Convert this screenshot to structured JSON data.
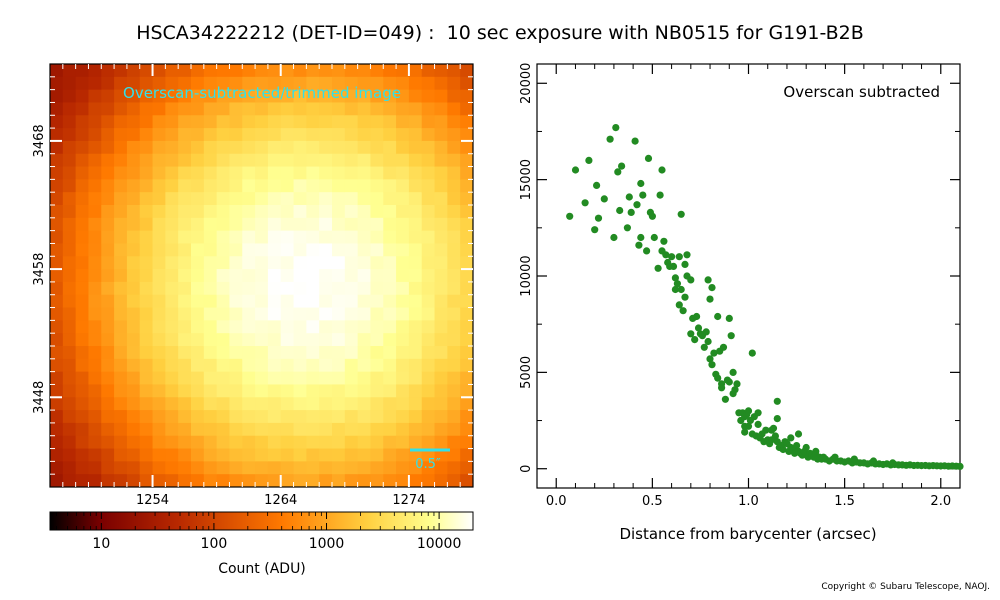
{
  "title": "HSCA34222212 (DET-ID=049) :  10 sec exposure with NB0515 for G191-B2B",
  "copyright": "Copyright © Subaru Telescope, NAOJ.",
  "chart_data": [
    {
      "type": "heatmap",
      "annotation": "Overscan-subtracted/trimmed image",
      "annotation_color": "#33e0e8",
      "scale_bar_label": "0.5″",
      "x_ticks": [
        "1254",
        "1264",
        "1274"
      ],
      "y_ticks": [
        "3468",
        "3458",
        "3448"
      ],
      "xlim": [
        1246,
        1279
      ],
      "ylim": [
        3441,
        3474
      ],
      "peak_center": [
        1266,
        3457
      ],
      "peak_value": 20000,
      "background_value": 20,
      "colormap": [
        "#000000",
        "#7a0000",
        "#b82800",
        "#ff7a00",
        "#ffd040",
        "#ffff90",
        "#ffffff"
      ],
      "colorbar": {
        "label": "Count (ADU)",
        "scale": "log",
        "range": [
          3.5,
          20000
        ],
        "ticks": [
          "10",
          "100",
          "1000",
          "10000"
        ]
      }
    },
    {
      "type": "scatter",
      "annotation": "Overscan subtracted",
      "xlabel": "Distance from barycenter (arcsec)",
      "ylabel": "",
      "xlim": [
        -0.1,
        2.1
      ],
      "ylim": [
        -1000,
        21000
      ],
      "x_ticks": [
        "0.0",
        "0.5",
        "1.0",
        "1.5",
        "2.0"
      ],
      "y_ticks": [
        "0",
        "5000",
        "10000",
        "15000",
        "20000"
      ],
      "point_color": "#228b22",
      "points": [
        [
          0.07,
          13100
        ],
        [
          0.1,
          15500
        ],
        [
          0.15,
          13800
        ],
        [
          0.17,
          16000
        ],
        [
          0.2,
          12400
        ],
        [
          0.21,
          14700
        ],
        [
          0.22,
          13000
        ],
        [
          0.25,
          14000
        ],
        [
          0.28,
          17100
        ],
        [
          0.3,
          12000
        ],
        [
          0.31,
          17700
        ],
        [
          0.32,
          15400
        ],
        [
          0.33,
          13400
        ],
        [
          0.34,
          15700
        ],
        [
          0.37,
          12500
        ],
        [
          0.38,
          14100
        ],
        [
          0.39,
          13300
        ],
        [
          0.41,
          17000
        ],
        [
          0.42,
          13700
        ],
        [
          0.43,
          11600
        ],
        [
          0.44,
          14800
        ],
        [
          0.44,
          12000
        ],
        [
          0.45,
          14200
        ],
        [
          0.47,
          11300
        ],
        [
          0.48,
          16100
        ],
        [
          0.49,
          13300
        ],
        [
          0.5,
          13100
        ],
        [
          0.51,
          12000
        ],
        [
          0.53,
          10400
        ],
        [
          0.54,
          14200
        ],
        [
          0.55,
          15500
        ],
        [
          0.55,
          11300
        ],
        [
          0.56,
          11800
        ],
        [
          0.57,
          11100
        ],
        [
          0.58,
          10700
        ],
        [
          0.59,
          10500
        ],
        [
          0.6,
          11000
        ],
        [
          0.61,
          10500
        ],
        [
          0.62,
          9900
        ],
        [
          0.62,
          9300
        ],
        [
          0.63,
          9600
        ],
        [
          0.64,
          8500
        ],
        [
          0.64,
          11000
        ],
        [
          0.65,
          13200
        ],
        [
          0.65,
          9300
        ],
        [
          0.66,
          8200
        ],
        [
          0.67,
          8900
        ],
        [
          0.67,
          10600
        ],
        [
          0.68,
          11100
        ],
        [
          0.68,
          10000
        ],
        [
          0.7,
          9800
        ],
        [
          0.7,
          7000
        ],
        [
          0.71,
          7800
        ],
        [
          0.72,
          6700
        ],
        [
          0.73,
          7900
        ],
        [
          0.74,
          7300
        ],
        [
          0.75,
          7000
        ],
        [
          0.76,
          6900
        ],
        [
          0.77,
          6300
        ],
        [
          0.78,
          7100
        ],
        [
          0.79,
          9800
        ],
        [
          0.79,
          6600
        ],
        [
          0.8,
          8800
        ],
        [
          0.8,
          5700
        ],
        [
          0.81,
          5400
        ],
        [
          0.81,
          9400
        ],
        [
          0.82,
          6000
        ],
        [
          0.83,
          4900
        ],
        [
          0.84,
          7900
        ],
        [
          0.84,
          4700
        ],
        [
          0.85,
          6100
        ],
        [
          0.86,
          4400
        ],
        [
          0.86,
          4200
        ],
        [
          0.87,
          6300
        ],
        [
          0.88,
          3600
        ],
        [
          0.89,
          4600
        ],
        [
          0.9,
          4500
        ],
        [
          0.9,
          7800
        ],
        [
          0.91,
          6900
        ],
        [
          0.92,
          3900
        ],
        [
          0.92,
          5000
        ],
        [
          0.93,
          4100
        ],
        [
          0.94,
          4400
        ],
        [
          0.95,
          2900
        ],
        [
          0.96,
          2500
        ],
        [
          0.97,
          2900
        ],
        [
          0.98,
          2200
        ],
        [
          0.98,
          2700
        ],
        [
          0.99,
          2800
        ],
        [
          1.0,
          3000
        ],
        [
          1.0,
          2200
        ],
        [
          1.01,
          2500
        ],
        [
          1.02,
          1800
        ],
        [
          1.02,
          6000
        ],
        [
          1.03,
          2700
        ],
        [
          1.04,
          1700
        ],
        [
          1.05,
          2300
        ],
        [
          1.06,
          1600
        ],
        [
          1.07,
          1800
        ],
        [
          1.08,
          1400
        ],
        [
          1.09,
          2000
        ],
        [
          1.1,
          1500
        ],
        [
          1.11,
          1300
        ],
        [
          1.12,
          1500
        ],
        [
          1.13,
          2100
        ],
        [
          1.14,
          1700
        ],
        [
          1.15,
          1400
        ],
        [
          1.15,
          3500
        ],
        [
          1.16,
          1100
        ],
        [
          1.17,
          1200
        ],
        [
          1.18,
          1000
        ],
        [
          1.19,
          1400
        ],
        [
          1.2,
          1300
        ],
        [
          1.21,
          900
        ],
        [
          1.22,
          1100
        ],
        [
          1.23,
          1000
        ],
        [
          1.24,
          800
        ],
        [
          1.25,
          1200
        ],
        [
          1.26,
          900
        ],
        [
          1.27,
          800
        ],
        [
          1.28,
          700
        ],
        [
          1.29,
          900
        ],
        [
          1.3,
          800
        ],
        [
          1.31,
          600
        ],
        [
          1.32,
          800
        ],
        [
          1.33,
          700
        ],
        [
          1.34,
          600
        ],
        [
          1.35,
          700
        ],
        [
          1.36,
          500
        ],
        [
          1.37,
          600
        ],
        [
          1.38,
          500
        ],
        [
          1.39,
          600
        ],
        [
          1.4,
          500
        ],
        [
          1.42,
          400
        ],
        [
          1.44,
          500
        ],
        [
          1.46,
          400
        ],
        [
          1.48,
          400
        ],
        [
          1.5,
          350
        ],
        [
          1.52,
          400
        ],
        [
          1.54,
          300
        ],
        [
          1.56,
          350
        ],
        [
          1.58,
          300
        ],
        [
          1.6,
          300
        ],
        [
          1.62,
          250
        ],
        [
          1.64,
          300
        ],
        [
          1.66,
          250
        ],
        [
          1.68,
          250
        ],
        [
          1.7,
          220
        ],
        [
          1.72,
          250
        ],
        [
          1.74,
          200
        ],
        [
          1.76,
          220
        ],
        [
          1.78,
          200
        ],
        [
          1.8,
          200
        ],
        [
          1.82,
          180
        ],
        [
          1.84,
          200
        ],
        [
          1.86,
          170
        ],
        [
          1.88,
          180
        ],
        [
          1.9,
          160
        ],
        [
          1.92,
          170
        ],
        [
          1.94,
          150
        ],
        [
          1.96,
          160
        ],
        [
          1.98,
          150
        ],
        [
          2.0,
          140
        ],
        [
          2.02,
          150
        ],
        [
          2.04,
          130
        ],
        [
          2.06,
          140
        ],
        [
          2.08,
          130
        ],
        [
          2.1,
          120
        ],
        [
          1.22,
          1600
        ],
        [
          1.26,
          1800
        ],
        [
          1.3,
          1100
        ],
        [
          1.35,
          900
        ],
        [
          1.15,
          2600
        ],
        [
          1.12,
          2000
        ],
        [
          1.05,
          2900
        ],
        [
          0.98,
          1900
        ],
        [
          1.45,
          600
        ],
        [
          1.55,
          500
        ],
        [
          1.65,
          400
        ],
        [
          1.75,
          300
        ]
      ]
    }
  ]
}
